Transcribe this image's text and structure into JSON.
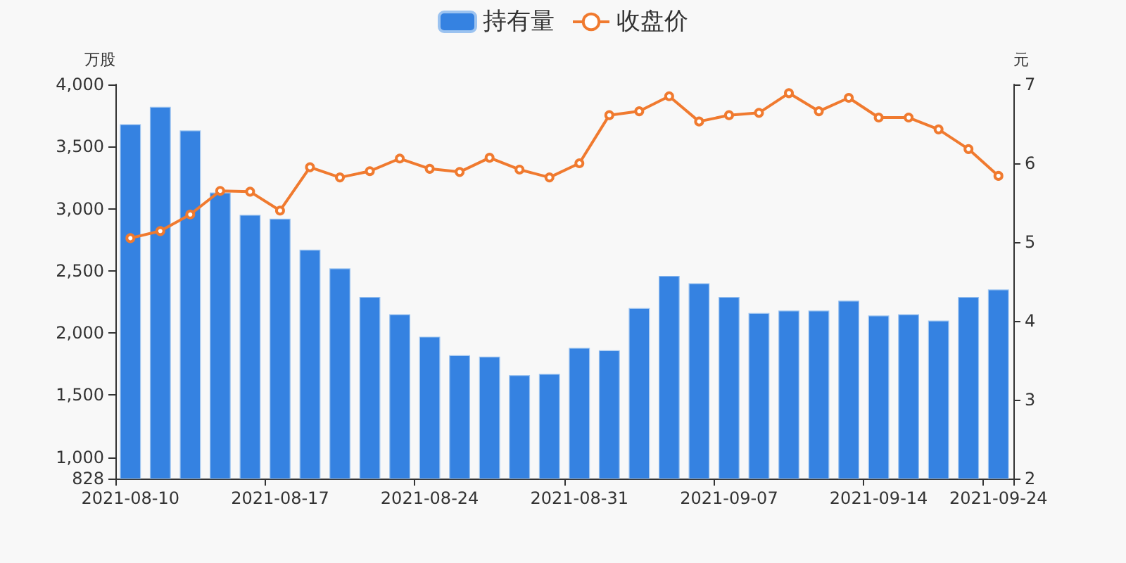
{
  "chart_data": {
    "type": "bar",
    "categories": [
      "2021-08-10",
      null,
      null,
      null,
      null,
      "2021-08-17",
      null,
      null,
      null,
      null,
      "2021-08-24",
      null,
      null,
      null,
      null,
      "2021-08-31",
      null,
      null,
      null,
      null,
      "2021-09-07",
      null,
      null,
      null,
      null,
      "2021-09-14",
      null,
      null,
      null,
      "2021-09-24"
    ],
    "series": [
      {
        "name": "持有量",
        "color": "#3582e1",
        "values": [
          3680,
          3820,
          3630,
          3130,
          2950,
          2920,
          2670,
          2520,
          2290,
          2150,
          1970,
          1820,
          1810,
          1660,
          1670,
          1880,
          1860,
          2200,
          2460,
          2400,
          2290,
          2160,
          2180,
          2180,
          2260,
          2140,
          2150,
          2100,
          2290,
          2350
        ]
      },
      {
        "name": "收盘价",
        "type": "line",
        "axis": "y2",
        "color": "#f07a2f",
        "values": [
          5.05,
          5.14,
          5.35,
          5.65,
          5.64,
          5.4,
          5.95,
          5.82,
          5.9,
          6.06,
          5.93,
          5.89,
          6.07,
          5.92,
          5.82,
          6.0,
          6.61,
          6.66,
          6.85,
          6.53,
          6.61,
          6.64,
          6.89,
          6.66,
          6.83,
          6.58,
          6.58,
          6.43,
          6.18,
          5.84
        ]
      }
    ],
    "ylabel": "万股",
    "y2label": "元",
    "ylim": [
      828,
      4000
    ],
    "yticks": [
      828,
      {
        "value": 1000,
        "label": "1,000"
      },
      {
        "value": 1500,
        "label": "1,500"
      },
      {
        "value": 2000,
        "label": "2,000"
      },
      {
        "value": 2500,
        "label": "2,500"
      },
      {
        "value": 3000,
        "label": "3,000"
      },
      {
        "value": 3500,
        "label": "3,500"
      },
      {
        "value": 4000,
        "label": "4,000"
      }
    ],
    "y2lim": [
      2,
      7
    ],
    "y2ticks": [
      2,
      3,
      4,
      5,
      6,
      7
    ],
    "grid": false,
    "legend": "top",
    "marker": "circle"
  }
}
